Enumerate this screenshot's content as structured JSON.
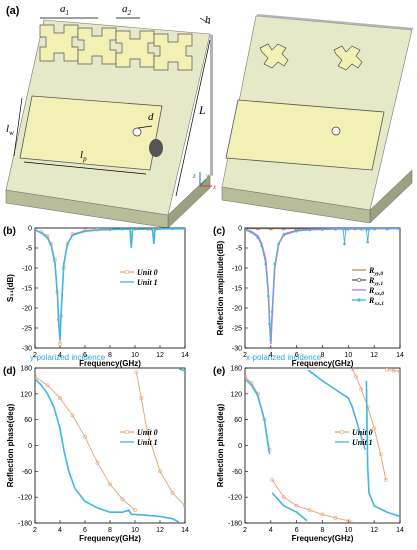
{
  "figure": {
    "panel_a": {
      "label": "(a)",
      "dims": {
        "a1": "a",
        "a1_sub": "1",
        "a2": "a",
        "a2_sub": "2",
        "h": "h",
        "L": "L",
        "lw": "l",
        "lw_sub": "w",
        "lp": "l",
        "lp_sub": "p",
        "d": "d"
      },
      "axes": {
        "z": "z",
        "y": "y",
        "x": "x"
      }
    },
    "incidence": {
      "y": "y-polarized incidence",
      "x": "x-polarized incidence"
    }
  },
  "chart_data": [
    {
      "panel": "(b)",
      "type": "line",
      "xlabel": "Frequency(GHz)",
      "ylabel": "S₁₁(dB)",
      "xlim": [
        2,
        14
      ],
      "ylim": [
        -30,
        0
      ],
      "xticks": [
        2,
        4,
        6,
        8,
        10,
        12,
        14
      ],
      "yticks": [
        0,
        -5,
        -10,
        -15,
        -20,
        -25,
        -30
      ],
      "legend_position": "center-right",
      "series": [
        {
          "name": "Unit 0",
          "color": "#e8a070",
          "marker": "open-circle",
          "x": [
            2,
            2.5,
            3,
            3.3,
            3.6,
            3.8,
            3.9,
            4.0,
            4.1,
            4.3,
            4.6,
            5,
            6,
            7,
            8,
            9,
            10,
            11,
            11.3,
            11.5,
            11.7,
            12,
            13,
            14
          ],
          "y": [
            -0.5,
            -1,
            -2,
            -4,
            -8,
            -16,
            -23,
            -29,
            -22,
            -10,
            -4,
            -1.5,
            -0.6,
            -0.4,
            -0.3,
            -0.2,
            -0.2,
            -0.2,
            -0.2,
            -0.2,
            -0.2,
            -0.1,
            -0.1,
            -0.1
          ]
        },
        {
          "name": "Unit 1",
          "color": "#3fb6e6",
          "marker": "line",
          "x": [
            2,
            2.5,
            3,
            3.3,
            3.6,
            3.8,
            3.9,
            4.0,
            4.1,
            4.3,
            4.6,
            5,
            6,
            7,
            8,
            9,
            9.6,
            9.7,
            9.8,
            10,
            11,
            11.4,
            11.5,
            11.6,
            12,
            13,
            14
          ],
          "y": [
            -0.5,
            -1.2,
            -2.5,
            -4.5,
            -9,
            -17,
            -24,
            -28,
            -21,
            -9,
            -4,
            -1.8,
            -0.8,
            -0.5,
            -0.4,
            -0.3,
            -0.3,
            -5,
            -0.3,
            -0.3,
            -0.3,
            -0.3,
            -4,
            -0.3,
            -0.2,
            -0.2,
            -0.2
          ]
        }
      ]
    },
    {
      "panel": "(c)",
      "type": "line",
      "xlabel": "Frequency(GHz)",
      "ylabel": "Reflection amplitude(dB)",
      "xlim": [
        2,
        14
      ],
      "ylim": [
        -30,
        0
      ],
      "xticks": [
        2,
        4,
        6,
        8,
        10,
        12,
        14
      ],
      "yticks": [
        0,
        -5,
        -10,
        -15,
        -20,
        -25,
        -30
      ],
      "legend_position": "center-right",
      "series": [
        {
          "name": "Ryy,0",
          "base": "R",
          "sub": "yy,0",
          "color": "#c08850",
          "marker": "line",
          "x": [
            2,
            4,
            6,
            8,
            10,
            12,
            14
          ],
          "y": [
            -0.1,
            -0.1,
            -0.1,
            -0.1,
            -0.1,
            -0.1,
            -0.1
          ]
        },
        {
          "name": "Ryy,1",
          "base": "R",
          "sub": "yy,1",
          "color": "#555555",
          "marker": "open-circle",
          "x": [
            2,
            3,
            4,
            5,
            6,
            7,
            8,
            9,
            10,
            10.5,
            11,
            11.5,
            12,
            13,
            14
          ],
          "y": [
            -0.1,
            -0.1,
            -0.1,
            -0.1,
            -0.1,
            -0.1,
            -0.1,
            -0.1,
            -0.1,
            -0.1,
            -0.1,
            -0.1,
            -0.1,
            -0.1,
            -0.1
          ]
        },
        {
          "name": "Rxx,0",
          "base": "R",
          "sub": "xx,0",
          "color": "#d070d0",
          "marker": "line",
          "x": [
            2,
            2.5,
            3,
            3.3,
            3.6,
            3.8,
            3.9,
            4.0,
            4.1,
            4.3,
            4.6,
            5,
            6,
            7,
            8,
            9,
            10,
            12,
            14
          ],
          "y": [
            -0.4,
            -0.9,
            -2,
            -4,
            -8,
            -16,
            -23,
            -29,
            -22,
            -10,
            -4,
            -1.5,
            -0.6,
            -0.4,
            -0.3,
            -0.2,
            -0.2,
            -0.1,
            -0.1
          ]
        },
        {
          "name": "Rxx,1",
          "base": "R",
          "sub": "xx,1",
          "color": "#3fb6e6",
          "marker": "star",
          "x": [
            2,
            2.5,
            3,
            3.3,
            3.6,
            3.8,
            3.9,
            4.0,
            4.1,
            4.3,
            4.6,
            5,
            6,
            7,
            8,
            9,
            9.6,
            9.7,
            9.8,
            10,
            11,
            11.4,
            11.5,
            11.6,
            12,
            13,
            14
          ],
          "y": [
            -0.5,
            -1.1,
            -2.4,
            -4.5,
            -9,
            -17,
            -24,
            -28,
            -21,
            -9,
            -4,
            -1.8,
            -0.8,
            -0.5,
            -0.4,
            -0.3,
            -0.3,
            -4,
            -0.3,
            -0.3,
            -0.3,
            -0.3,
            -3.5,
            -0.3,
            -0.2,
            -0.2,
            -0.2
          ]
        }
      ]
    },
    {
      "panel": "(d)",
      "type": "line",
      "xlabel": "Frequency(GHz)",
      "ylabel": "Reflection phase(deg)",
      "xlim": [
        2,
        14
      ],
      "ylim": [
        -180,
        180
      ],
      "xticks": [
        2,
        4,
        6,
        8,
        10,
        12,
        14
      ],
      "yticks": [
        180,
        120,
        60,
        0,
        -60,
        -120,
        -180
      ],
      "legend_position": "center-right",
      "series": [
        {
          "name": "Unit 0",
          "color": "#e8a070",
          "marker": "open-circle",
          "segments": [
            {
              "x": [
                2,
                3,
                4,
                5,
                6,
                7,
                8,
                9,
                10
              ],
              "y": [
                160,
                140,
                110,
                70,
                20,
                -40,
                -90,
                -125,
                -150
              ]
            },
            {
              "x": [
                10.1,
                10.5,
                11,
                12,
                13,
                14
              ],
              "y": [
                170,
                110,
                30,
                -60,
                -110,
                -140
              ]
            }
          ]
        },
        {
          "name": "Unit 1",
          "color": "#3fb6e6",
          "marker": "line",
          "segments": [
            {
              "x": [
                2,
                2.5,
                3,
                3.5,
                4,
                4.3,
                4.7,
                5.2,
                6,
                7,
                8,
                9,
                9.5,
                9.7,
                10,
                11,
                12,
                13,
                13.5
              ],
              "y": [
                155,
                140,
                120,
                90,
                40,
                -10,
                -60,
                -100,
                -130,
                -145,
                -155,
                -155,
                -150,
                -160,
                -160,
                -162,
                -165,
                -170,
                -178
              ]
            },
            {
              "x": [
                13.55,
                13.7,
                14
              ],
              "y": [
                178,
                176,
                174
              ]
            }
          ]
        }
      ]
    },
    {
      "panel": "(e)",
      "type": "line",
      "xlabel": "Frequency(GHz)",
      "ylabel": "Reflection phase(deg)",
      "xlim": [
        2,
        14
      ],
      "ylim": [
        -180,
        180
      ],
      "xticks": [
        2,
        4,
        6,
        8,
        10,
        12,
        14
      ],
      "yticks": [
        180,
        120,
        60,
        0,
        -60,
        -120,
        -180
      ],
      "legend_position": "center-right",
      "series": [
        {
          "name": "Unit 0",
          "color": "#e8a070",
          "marker": "open-circle",
          "segments": [
            {
              "x": [
                2,
                2.5,
                3,
                3.5,
                3.9
              ],
              "y": [
                160,
                145,
                120,
                60,
                -10
              ]
            },
            {
              "x": [
                4.1,
                5,
                6,
                7,
                8,
                9,
                10,
                10.2
              ],
              "y": [
                -80,
                -120,
                -140,
                -150,
                -160,
                -168,
                -175,
                -179
              ]
            },
            {
              "x": [
                10.3,
                10.6,
                11,
                11.5,
                12,
                12.5,
                12.9
              ],
              "y": [
                178,
                160,
                130,
                90,
                40,
                -20,
                -80
              ]
            },
            {
              "x": [
                13.0,
                13.5,
                14
              ],
              "y": [
                176,
                174,
                172
              ]
            }
          ]
        },
        {
          "name": "Unit 1",
          "color": "#3fb6e6",
          "marker": "line",
          "segments": [
            {
              "x": [
                2,
                2.5,
                3,
                3.5,
                3.9
              ],
              "y": [
                155,
                140,
                115,
                60,
                -20
              ]
            },
            {
              "x": [
                4.1,
                5,
                6,
                6.8
              ],
              "y": [
                -110,
                -140,
                -155,
                -175
              ]
            },
            {
              "x": [
                6.9,
                8,
                9,
                10,
                10.3,
                10.6,
                11,
                11.3
              ],
              "y": [
                175,
                150,
                130,
                110,
                90,
                60,
                20,
                -10
              ]
            },
            {
              "x": [
                11.4,
                11.5,
                11.6,
                12,
                13,
                14
              ],
              "y": [
                150,
                -50,
                -110,
                -140,
                -155,
                -165
              ]
            }
          ]
        }
      ]
    }
  ]
}
